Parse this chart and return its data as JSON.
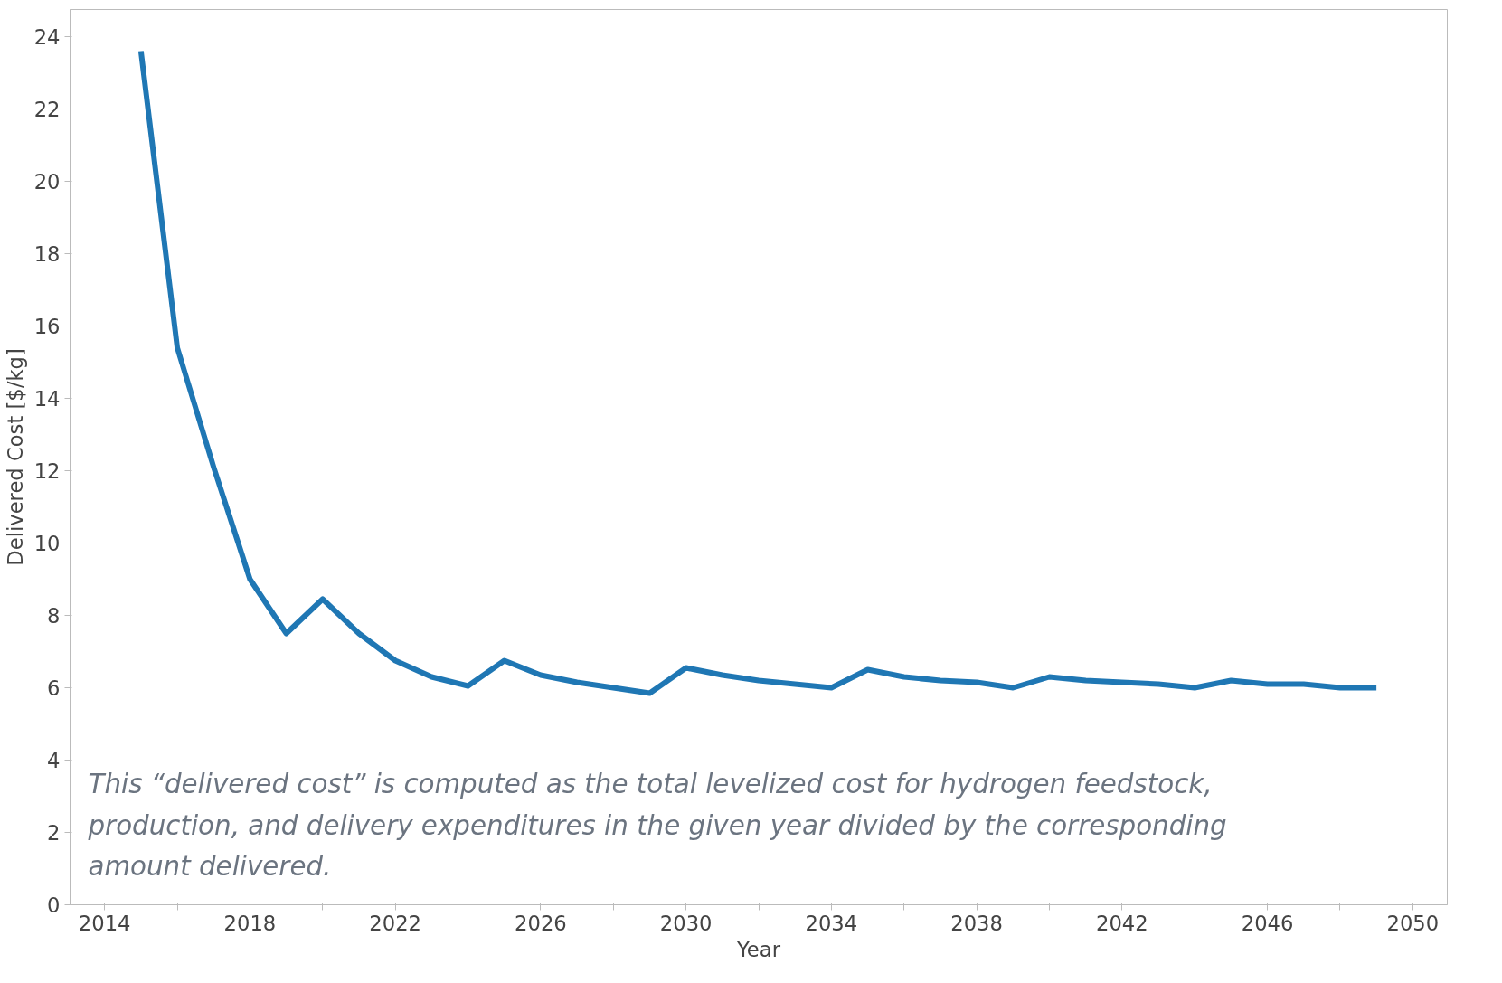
{
  "chart_data": {
    "type": "line",
    "xlabel": "Year",
    "ylabel": "Delivered Cost [$/kg]",
    "x": [
      2015,
      2016,
      2017,
      2018,
      2019,
      2020,
      2021,
      2022,
      2023,
      2024,
      2025,
      2026,
      2027,
      2028,
      2029,
      2030,
      2031,
      2032,
      2033,
      2034,
      2035,
      2036,
      2037,
      2038,
      2039,
      2040,
      2041,
      2042,
      2043,
      2044,
      2045,
      2046,
      2047,
      2048,
      2049
    ],
    "series": [
      {
        "color": "#1f77b4",
        "values": [
          23.6,
          15.4,
          12.1,
          9.0,
          7.5,
          8.45,
          7.5,
          6.75,
          6.3,
          6.05,
          6.75,
          6.35,
          6.15,
          6.0,
          5.85,
          6.55,
          6.35,
          6.2,
          6.1,
          6.0,
          6.5,
          6.3,
          6.2,
          6.15,
          6.0,
          6.3,
          6.2,
          6.15,
          6.1,
          6.0,
          6.2,
          6.1,
          6.1,
          6.0,
          6.0
        ]
      }
    ],
    "xlim": [
      2013.05,
      2050.95
    ],
    "ylim": [
      0,
      24.75
    ],
    "xticks": [
      2014,
      {
        "value": 2016,
        "label": null
      },
      2018,
      {
        "value": 2020,
        "label": null
      },
      2022,
      {
        "value": 2024,
        "label": null
      },
      2026,
      {
        "value": 2028,
        "label": null
      },
      2030,
      {
        "value": 2032,
        "label": null
      },
      2034,
      {
        "value": 2036,
        "label": null
      },
      2038,
      {
        "value": 2040,
        "label": null
      },
      2042,
      {
        "value": 2044,
        "label": null
      },
      2046,
      {
        "value": 2048,
        "label": null
      },
      2050
    ],
    "yticks": [
      0,
      2,
      4,
      6,
      8,
      10,
      12,
      14,
      16,
      18,
      20,
      22,
      24
    ],
    "annotations": [
      "This “delivered cost” is computed as the total levelized cost for hydrogen feedstock,\nproduction, and delivery expenditures in the given year divided by the corresponding\namount delivered."
    ],
    "grid": false,
    "marker": "none",
    "line_style": "solid"
  }
}
